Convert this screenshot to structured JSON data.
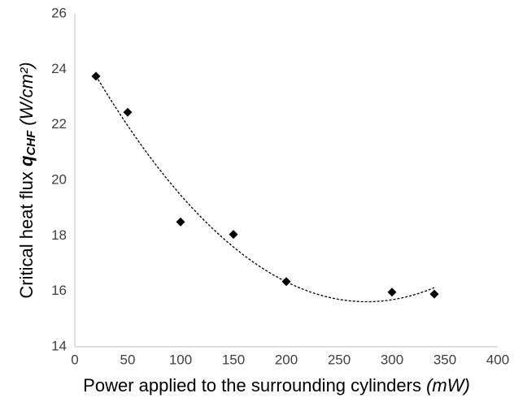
{
  "chart_data": {
    "type": "scatter",
    "x": [
      20,
      50,
      100,
      150,
      200,
      300,
      340
    ],
    "series": [
      {
        "name": null,
        "color": "#000000",
        "values": [
          23.75,
          22.45,
          18.5,
          18.05,
          16.35,
          15.97,
          15.9
        ]
      }
    ],
    "xlim": [
      0,
      400
    ],
    "xticks": [
      0,
      50,
      100,
      150,
      200,
      250,
      300,
      350,
      400
    ],
    "ylim": [
      14,
      26
    ],
    "yticks": [
      14,
      16,
      18,
      20,
      22,
      24,
      26
    ],
    "xlabel": {
      "text": "Power applied to the surrounding cylinders ",
      "unit": "(mW)"
    },
    "ylabel": {
      "text": "Critical heat flux ",
      "symbol": "q",
      "subscript": "CHF",
      "unit": " (W/cm²)"
    },
    "trendline": "polynomial",
    "trendline_order": 2,
    "grid": false
  }
}
